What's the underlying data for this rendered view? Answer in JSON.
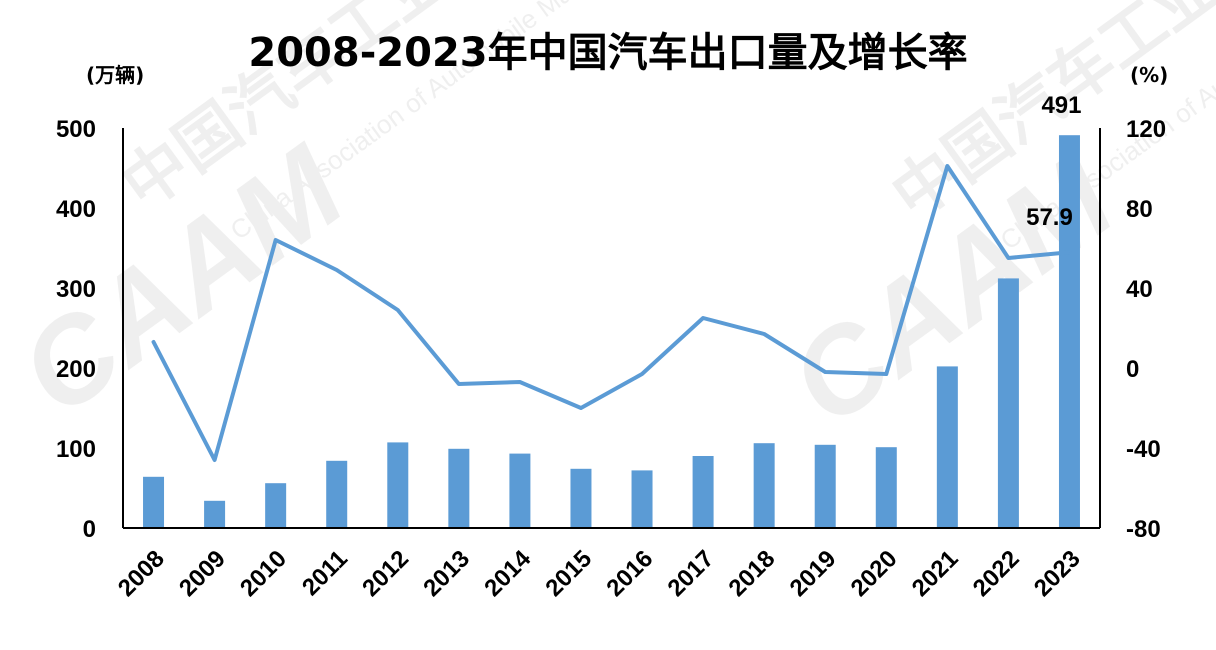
{
  "chart_data": {
    "type": "bar",
    "title": "2008-2023年中国汽车出口量及增长率",
    "categories": [
      "2008",
      "2009",
      "2010",
      "2011",
      "2012",
      "2013",
      "2014",
      "2015",
      "2016",
      "2017",
      "2018",
      "2019",
      "2020",
      "2021",
      "2022",
      "2023"
    ],
    "series": [
      {
        "type": "bar",
        "axis": "left",
        "values": [
          64,
          34,
          56,
          84,
          107,
          99,
          93,
          74,
          72,
          90,
          106,
          104,
          101,
          202,
          312,
          491
        ]
      },
      {
        "type": "line",
        "axis": "right",
        "values": [
          13,
          -46,
          64,
          49,
          29,
          -8,
          -7,
          -20,
          -3,
          25,
          17,
          -2,
          -3,
          101,
          55,
          57.9
        ]
      }
    ],
    "y_left": {
      "unit": "(万辆)",
      "min": 0,
      "max": 500,
      "ticks": [
        "0",
        "100",
        "200",
        "300",
        "400",
        "500"
      ]
    },
    "y_right": {
      "unit": "(%)",
      "min": -80,
      "max": 120,
      "ticks": [
        "-80",
        "-40",
        "0",
        "40",
        "80",
        "120"
      ]
    },
    "data_labels": {
      "bar_last": "491",
      "line_last": "57.9"
    },
    "watermark": {
      "logo": "CAAM",
      "lines": [
        "中国汽车工业协会",
        "China Association of Automobile Manufacturers"
      ]
    },
    "grid": false,
    "legend": "none",
    "colors": {
      "bar": "#5b9bd5",
      "line": "#5b9bd5",
      "axis": "#000000",
      "watermark": "#d9d9d9"
    }
  }
}
